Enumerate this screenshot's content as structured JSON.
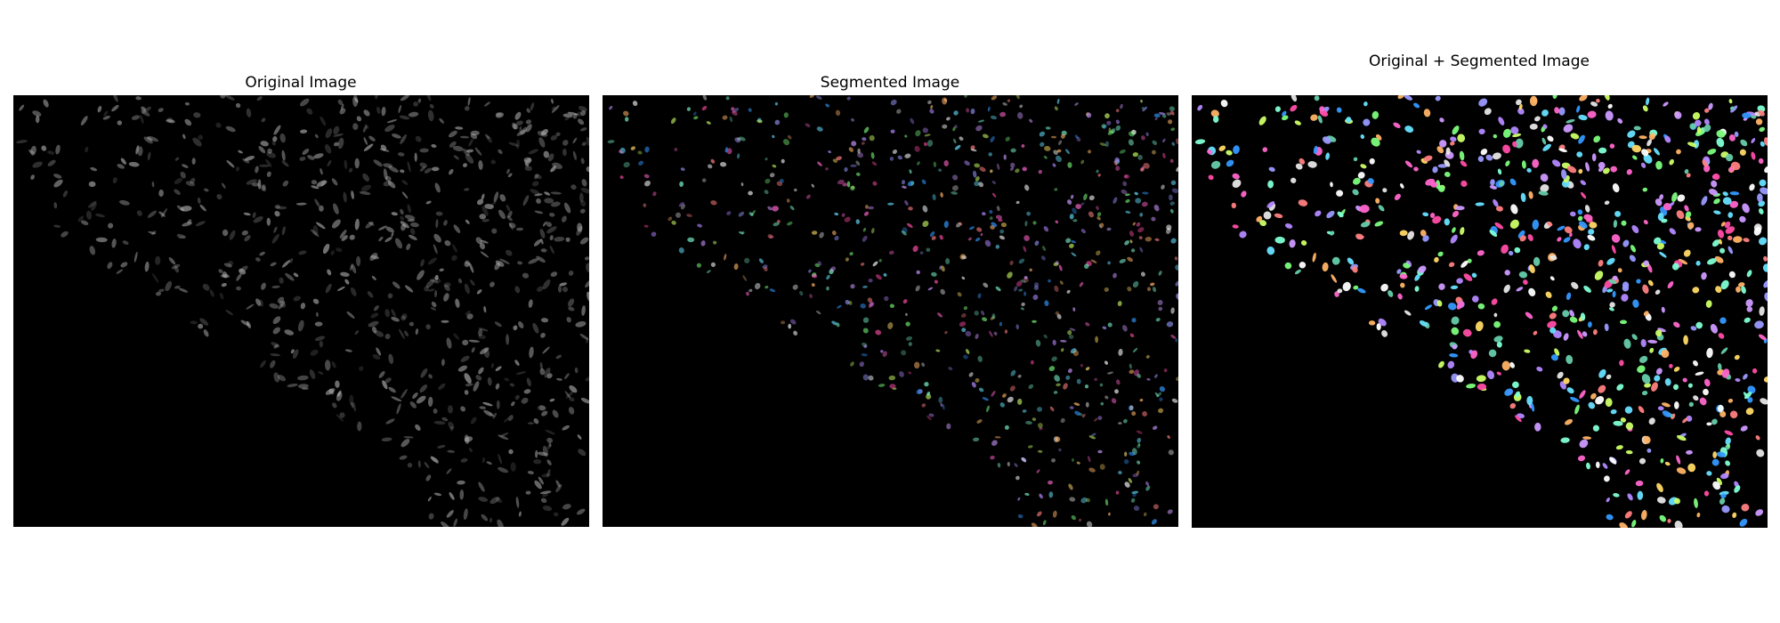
{
  "figure": {
    "panels": [
      {
        "title": "Original Image",
        "kind": "original"
      },
      {
        "title": "Segmented Image",
        "kind": "segmented"
      },
      {
        "title": "Original + Segmented Image",
        "kind": "overlay"
      }
    ]
  },
  "colors": {
    "panel_background": "#000000",
    "page_background": "#ffffff",
    "original_cell": "#bfbfbf",
    "label_palette": [
      "#e6e6e6",
      "#ff66cc",
      "#66e0ff",
      "#b388ff",
      "#7cfc7c",
      "#ffd966",
      "#ff8080",
      "#80ffd4",
      "#9999ff",
      "#ffb366",
      "#cc99ff",
      "#66ccaa",
      "#ff4da6",
      "#3399ff",
      "#ccff66",
      "#ffffff"
    ]
  }
}
